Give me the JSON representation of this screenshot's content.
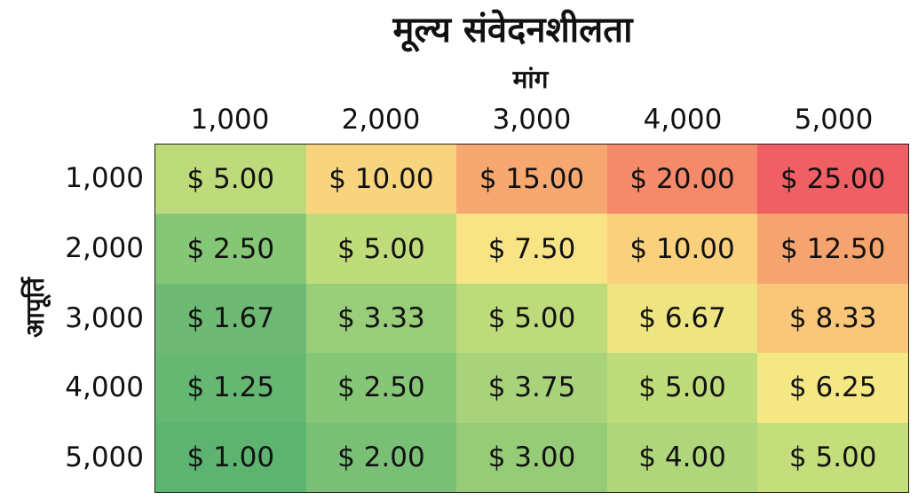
{
  "chart_data": {
    "type": "heatmap",
    "title": "मूल्य संवेदनशीलता",
    "col_axis_label": "मांग",
    "row_axis_label": "आपूर्ति",
    "columns": [
      "1,000",
      "2,000",
      "3,000",
      "4,000",
      "5,000"
    ],
    "rows": [
      "1,000",
      "2,000",
      "3,000",
      "4,000",
      "5,000"
    ],
    "column_values": [
      1000,
      2000,
      3000,
      4000,
      5000
    ],
    "row_values": [
      1000,
      2000,
      3000,
      4000,
      5000
    ],
    "values": [
      [
        5.0,
        10.0,
        15.0,
        20.0,
        25.0
      ],
      [
        2.5,
        5.0,
        7.5,
        10.0,
        12.5
      ],
      [
        1.67,
        3.33,
        5.0,
        6.67,
        8.33
      ],
      [
        1.25,
        2.5,
        3.75,
        5.0,
        6.25
      ],
      [
        1.0,
        2.0,
        3.0,
        4.0,
        5.0
      ]
    ],
    "cell_labels": [
      [
        "$ 5.00",
        "$ 10.00",
        "$ 15.00",
        "$ 20.00",
        "$ 25.00"
      ],
      [
        "$ 2.50",
        "$ 5.00",
        "$ 7.50",
        "$ 10.00",
        "$ 12.50"
      ],
      [
        "$ 1.67",
        "$ 3.33",
        "$ 5.00",
        "$ 6.67",
        "$ 8.33"
      ],
      [
        "$ 1.25",
        "$ 2.50",
        "$ 3.75",
        "$ 5.00",
        "$ 6.25"
      ],
      [
        "$ 1.00",
        "$ 2.00",
        "$ 3.00",
        "$ 4.00",
        "$ 5.00"
      ]
    ],
    "color_scale": {
      "low": "#5bb371",
      "mid_low": "#c4dd7e",
      "mid": "#f7e584",
      "mid_high": "#f6a36e",
      "high": "#ee5e63"
    },
    "colors": [
      [
        "#bddb7b",
        "#f9d47e",
        "#f6a870",
        "#f48a69",
        "#ef5f63"
      ],
      [
        "#86c677",
        "#bfdc7b",
        "#f8e385",
        "#fad07d",
        "#f6a46f"
      ],
      [
        "#6eba74",
        "#99cd79",
        "#bedb7b",
        "#eee482",
        "#fac77a"
      ],
      [
        "#65b772",
        "#86c677",
        "#a9d37a",
        "#bfdc7b",
        "#f4e784"
      ],
      [
        "#5db470",
        "#79c076",
        "#96cc78",
        "#afd67b",
        "#c5de7c"
      ]
    ]
  }
}
